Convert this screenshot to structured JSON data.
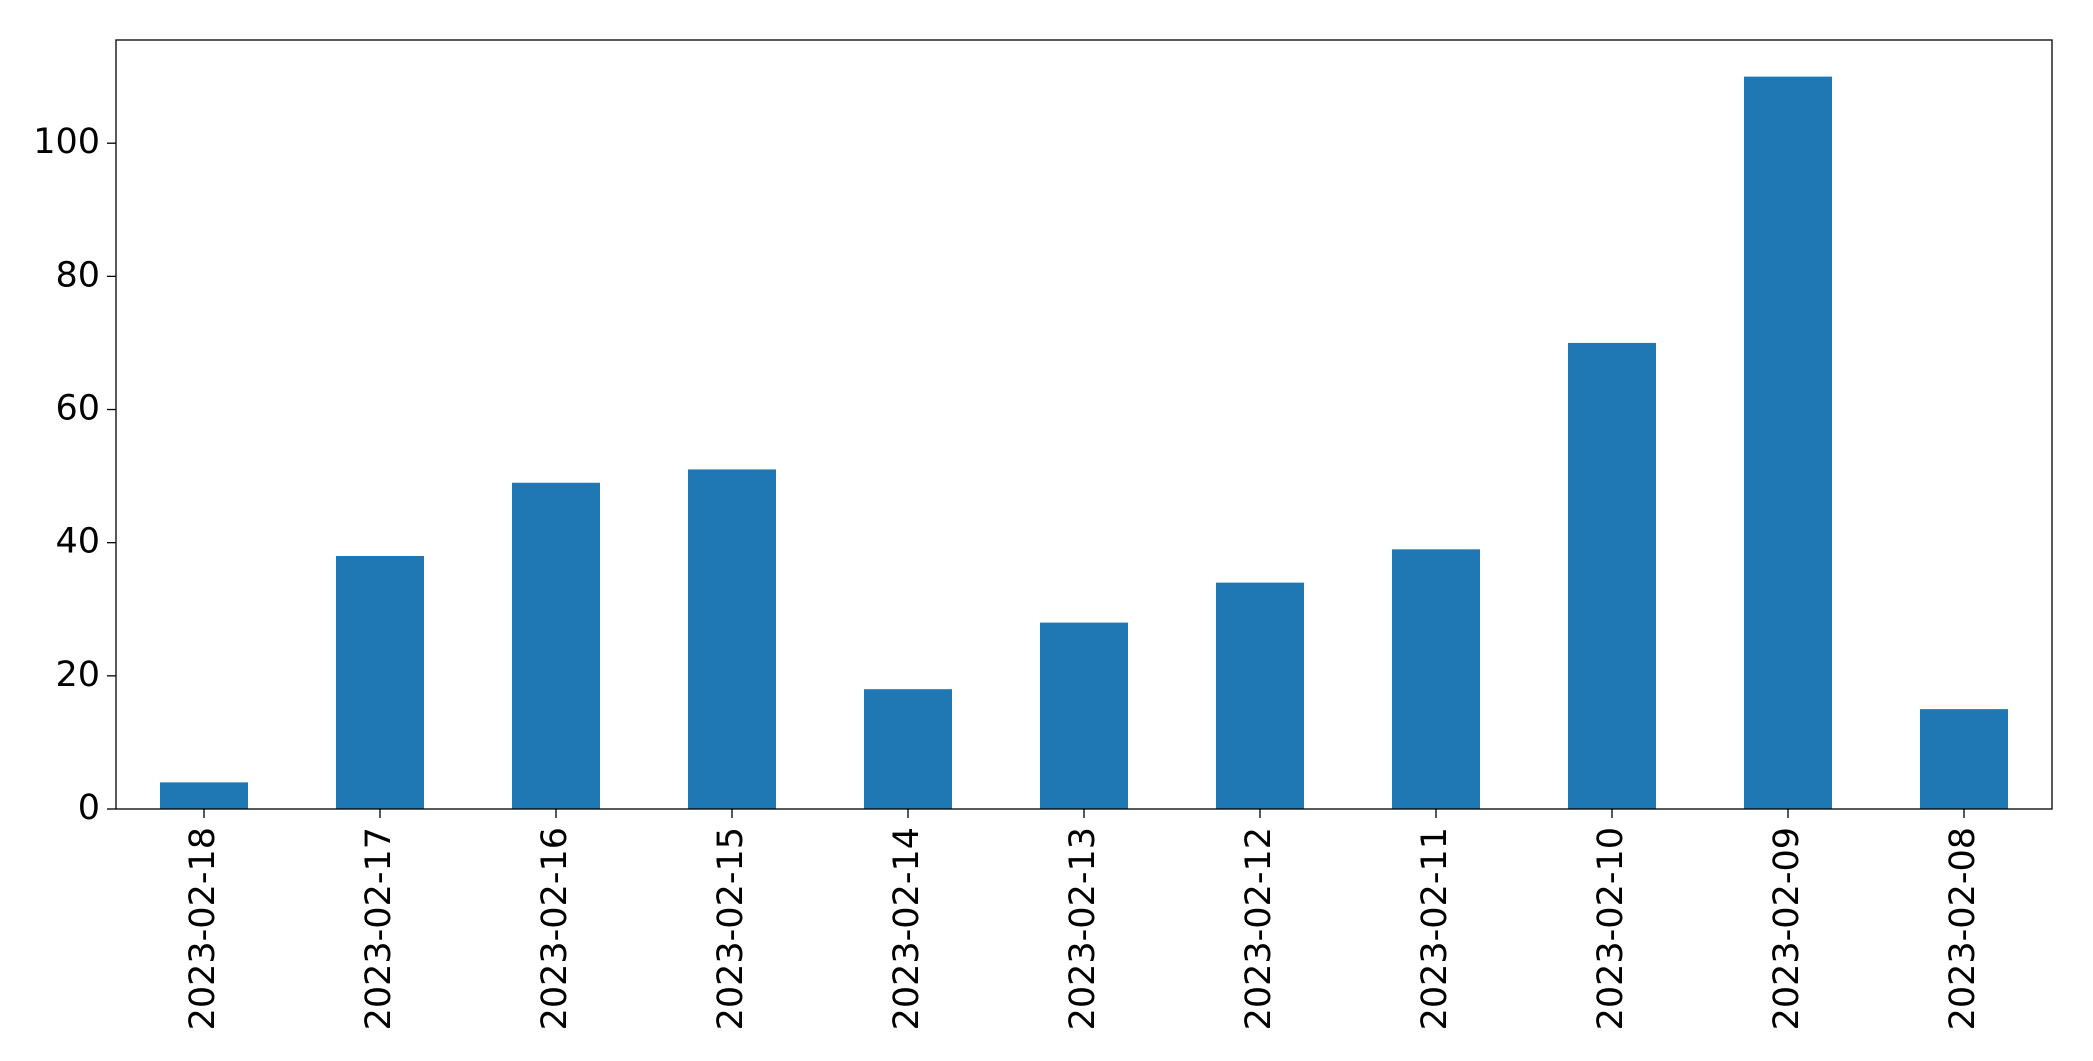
{
  "chart_data": {
    "type": "bar",
    "categories": [
      "2023-02-18",
      "2023-02-17",
      "2023-02-16",
      "2023-02-15",
      "2023-02-14",
      "2023-02-13",
      "2023-02-12",
      "2023-02-11",
      "2023-02-10",
      "2023-02-09",
      "2023-02-08"
    ],
    "values": [
      4,
      38,
      49,
      51,
      18,
      28,
      34,
      39,
      70,
      110,
      15
    ],
    "color": "#1f77b4",
    "ylim": [
      0,
      115.5
    ],
    "yticks": [
      0,
      20,
      40,
      60,
      80,
      100
    ],
    "grid": false
  }
}
